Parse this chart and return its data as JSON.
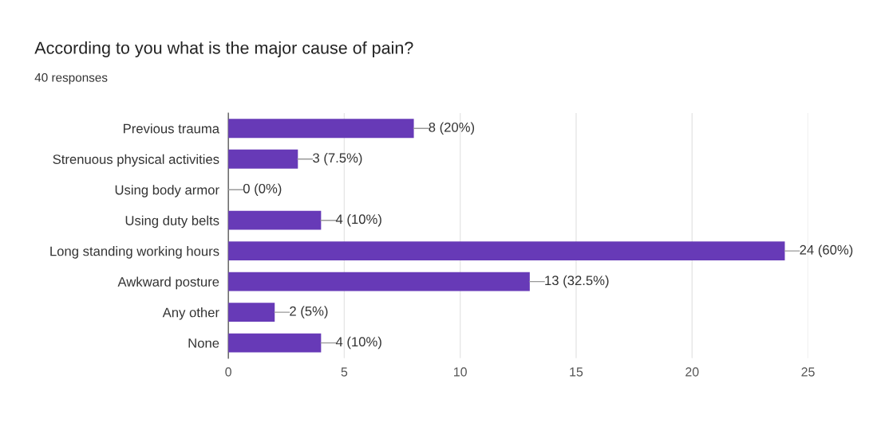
{
  "chart_data": {
    "type": "bar",
    "orientation": "horizontal",
    "title": "According to you what is the major cause of pain?",
    "subtitle": "40 responses",
    "categories": [
      "Previous trauma",
      "Strenuous physical activities",
      "Using body armor",
      "Using duty belts",
      "Long standing working hours",
      "Awkward posture",
      "Any other",
      "None"
    ],
    "values": [
      8,
      3,
      0,
      4,
      24,
      13,
      2,
      4
    ],
    "value_labels": [
      "8 (20%)",
      "3 (7.5%)",
      "0 (0%)",
      "4 (10%)",
      "24 (60%)",
      "13 (32.5%)",
      "2 (5%)",
      "4 (10%)"
    ],
    "color": "#673ab7",
    "xlim": [
      0,
      25
    ],
    "xticks": [
      0,
      5,
      10,
      15,
      20,
      25
    ],
    "grid": "x",
    "legend": false
  }
}
